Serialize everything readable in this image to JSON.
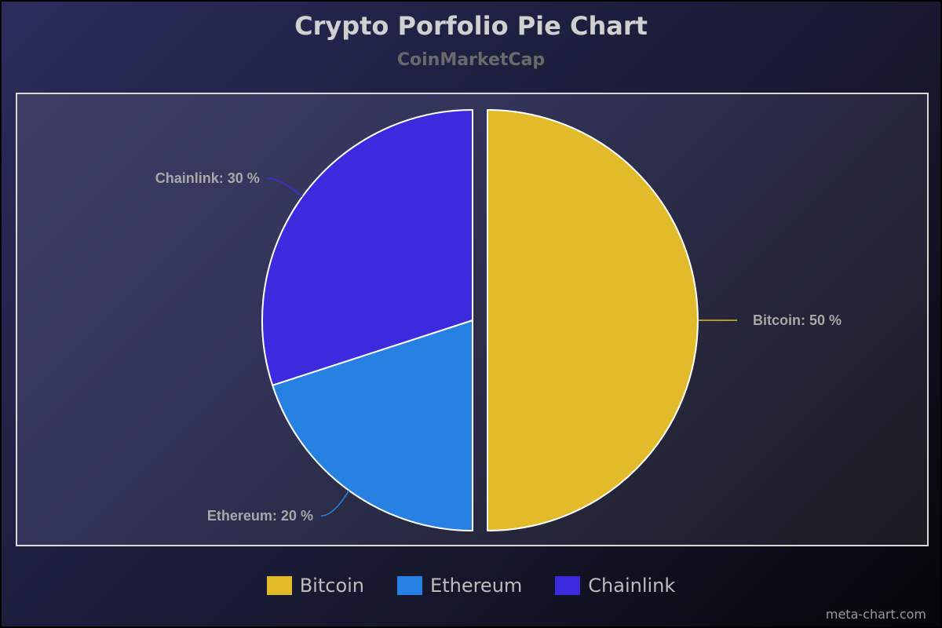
{
  "chart_data": {
    "type": "pie",
    "title": "Crypto Porfolio Pie Chart",
    "subtitle": "CoinMarketCap",
    "slices": [
      {
        "name": "Bitcoin",
        "value": 50,
        "color": "#e2bb2a",
        "label": "Bitcoin: 50 %",
        "label_side": "right",
        "exploded": true
      },
      {
        "name": "Ethereum",
        "value": 20,
        "color": "#2681e2",
        "label": "Ethereum: 20 %",
        "label_side": "left",
        "exploded": false
      },
      {
        "name": "Chainlink",
        "value": 30,
        "color": "#3c2ade",
        "label": "Chainlink: 30 %",
        "label_side": "left",
        "exploded": false
      }
    ],
    "legend_position": "bottom-center"
  },
  "credit": "meta-chart.com"
}
